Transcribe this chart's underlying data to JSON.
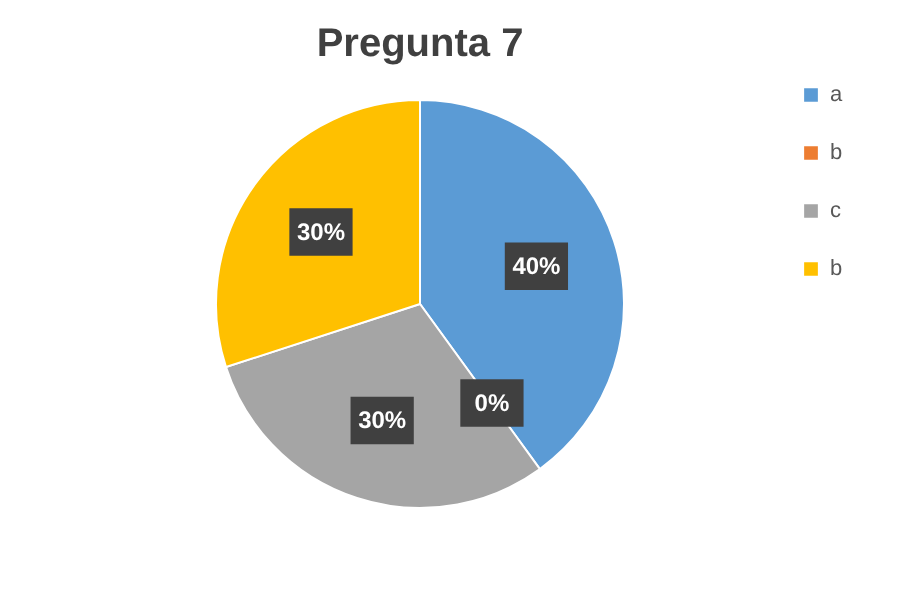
{
  "chart_data": {
    "type": "pie",
    "title": "Pregunta 7",
    "categories": [
      "a",
      "b",
      "c",
      "b"
    ],
    "values": [
      40,
      0,
      30,
      30
    ],
    "colors": [
      "#5b9bd5",
      "#ed7d31",
      "#a5a5a5",
      "#ffc000"
    ],
    "value_labels": [
      "40%",
      "0%",
      "30%",
      "30%"
    ],
    "legend": "right"
  }
}
